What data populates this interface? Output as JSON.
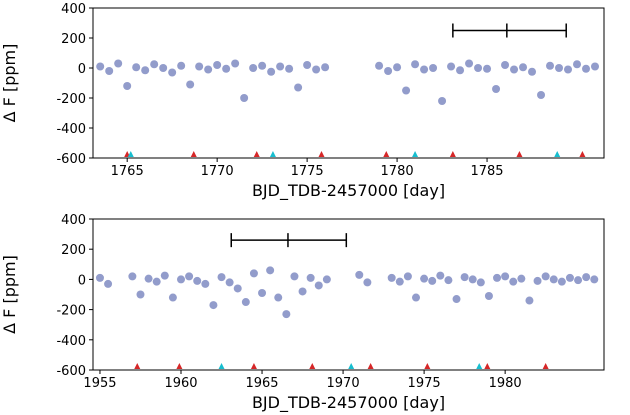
{
  "chart_data": [
    {
      "type": "scatter",
      "xlabel": "BJD_TDB-2457000 [day]",
      "ylabel": "Δ F [ppm]",
      "xlim": [
        1763.1,
        1791.5
      ],
      "ylim": [
        -600,
        400
      ],
      "xticks": [
        1765,
        1770,
        1775,
        1780,
        1785
      ],
      "yticks": [
        -600,
        -400,
        -200,
        0,
        200,
        400
      ],
      "color": "#4a5aa8",
      "x": [
        1763.5,
        1764.0,
        1764.5,
        1765.0,
        1765.5,
        1766.0,
        1766.5,
        1767.0,
        1767.5,
        1768.0,
        1768.5,
        1769.0,
        1769.5,
        1770.0,
        1770.5,
        1771.0,
        1771.5,
        1772.0,
        1772.5,
        1773.0,
        1773.5,
        1774.0,
        1774.5,
        1775.0,
        1775.5,
        1776.0,
        1779.0,
        1779.5,
        1780.0,
        1780.5,
        1781.0,
        1781.5,
        1782.0,
        1782.5,
        1783.0,
        1783.5,
        1784.0,
        1784.5,
        1785.0,
        1785.5,
        1786.0,
        1786.5,
        1787.0,
        1787.5,
        1788.0,
        1788.5,
        1789.0,
        1789.5,
        1790.0,
        1790.5,
        1791.0
      ],
      "values": [
        10,
        -20,
        30,
        -120,
        5,
        -15,
        25,
        0,
        -30,
        15,
        -110,
        10,
        -10,
        20,
        -5,
        30,
        -200,
        0,
        15,
        -25,
        10,
        -5,
        -130,
        20,
        -10,
        5,
        15,
        -20,
        5,
        -150,
        25,
        -10,
        0,
        -220,
        10,
        -15,
        30,
        0,
        -5,
        -140,
        20,
        -10,
        5,
        -25,
        -180,
        15,
        0,
        -10,
        25,
        -5,
        10
      ],
      "triangles_red": [
        1765.0,
        1768.7,
        1772.2,
        1775.8,
        1779.4,
        1783.1,
        1786.8,
        1790.3
      ],
      "triangles_cyan": [
        1765.2,
        1773.1,
        1781.0,
        1788.9
      ],
      "red": "#d62728",
      "cyan": "#17becf",
      "span": {
        "x": [
          1783.1,
          1786.1,
          1789.4
        ],
        "y": 250
      }
    },
    {
      "type": "scatter",
      "xlabel": "BJD_TDB-2457000 [day]",
      "ylabel": "Δ F [ppm]",
      "xlim": [
        1954.57,
        1986.1
      ],
      "ylim": [
        -600,
        400
      ],
      "xticks": [
        1955,
        1960,
        1965,
        1970,
        1975,
        1980
      ],
      "yticks": [
        -600,
        -400,
        -200,
        0,
        200,
        400
      ],
      "color": "#4a5aa8",
      "x": [
        1955.0,
        1955.5,
        1957.0,
        1957.5,
        1958.0,
        1958.5,
        1959.0,
        1959.5,
        1960.0,
        1960.5,
        1961.0,
        1961.5,
        1962.0,
        1962.5,
        1963.0,
        1963.5,
        1964.0,
        1964.5,
        1965.0,
        1965.5,
        1966.0,
        1966.5,
        1967.0,
        1967.5,
        1968.0,
        1968.5,
        1969.0,
        1971.0,
        1971.5,
        1973.0,
        1973.5,
        1974.0,
        1974.5,
        1975.0,
        1975.5,
        1976.0,
        1976.5,
        1977.0,
        1977.5,
        1978.0,
        1978.5,
        1979.0,
        1979.5,
        1980.0,
        1980.5,
        1981.0,
        1981.5,
        1982.0,
        1982.5,
        1983.0,
        1983.5,
        1984.0,
        1984.5,
        1985.0,
        1985.5
      ],
      "values": [
        10,
        -30,
        20,
        -100,
        5,
        -15,
        25,
        -120,
        0,
        20,
        -10,
        -30,
        -170,
        15,
        -20,
        -60,
        -150,
        40,
        -90,
        60,
        -120,
        -230,
        20,
        -80,
        10,
        -40,
        0,
        30,
        -20,
        10,
        -15,
        20,
        -120,
        5,
        -10,
        25,
        -5,
        -130,
        15,
        0,
        -20,
        -110,
        10,
        20,
        -15,
        5,
        -140,
        -10,
        20,
        0,
        -15,
        10,
        -5,
        15,
        0
      ],
      "triangles_red": [
        1957.3,
        1959.9,
        1964.5,
        1968.1,
        1971.7,
        1975.2,
        1978.9,
        1982.5
      ],
      "triangles_cyan": [
        1962.5,
        1970.5,
        1978.4
      ],
      "red": "#d62728",
      "cyan": "#17becf",
      "span": {
        "x": [
          1963.1,
          1966.6,
          1970.2
        ],
        "y": 260
      }
    }
  ]
}
